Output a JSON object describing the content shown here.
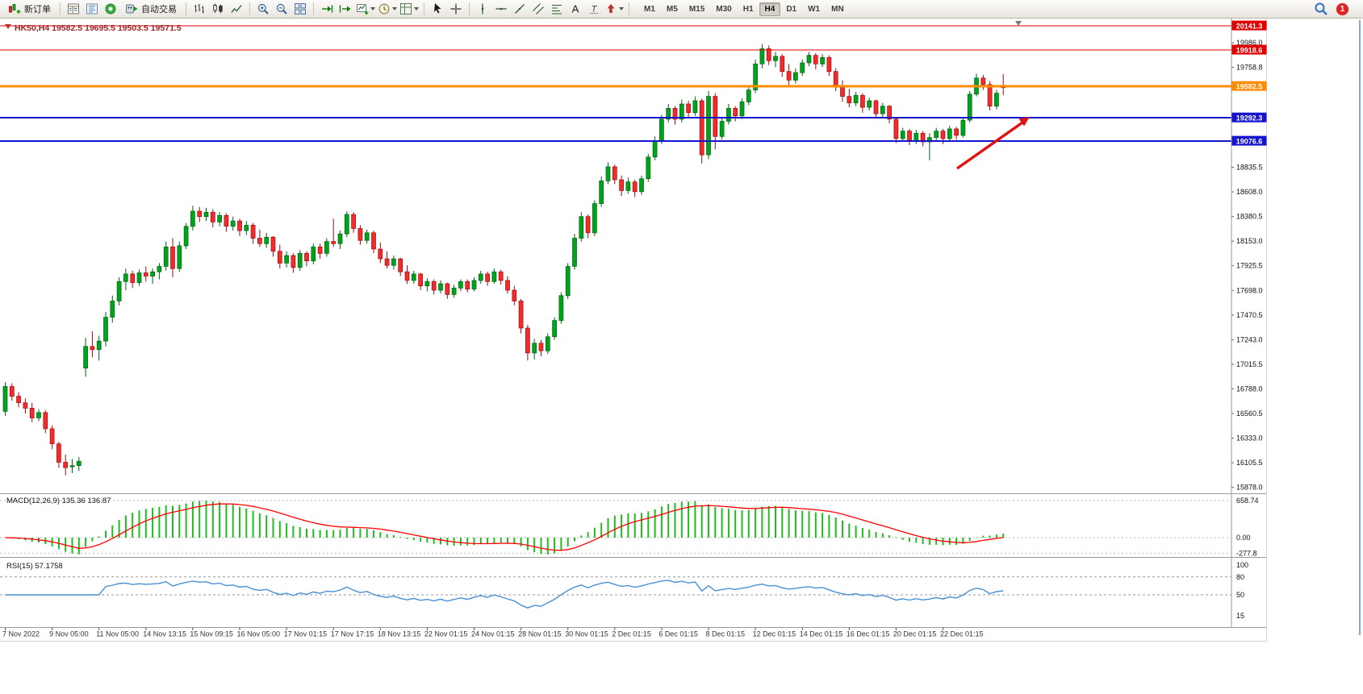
{
  "window": {
    "notification_count": "1"
  },
  "toolbar": {
    "new_order_label": "新订单",
    "auto_trading_label": "自动交易",
    "timeframes": [
      "M1",
      "M5",
      "M15",
      "M30",
      "H1",
      "H4",
      "D1",
      "W1",
      "MN"
    ],
    "active_timeframe": "H4"
  },
  "chart_data": {
    "type": "candlestick",
    "symbol": "HK50",
    "timeframe": "H4",
    "title": "HK50,H4 19582.5 19695.5 19503.5 19571.5",
    "ohlc": {
      "open": 19582.5,
      "high": 19695.5,
      "low": 19503.5,
      "close": 19571.5
    },
    "price_axis_ticks": [
      "19986.0",
      "19758.8",
      "18835.5",
      "18608.0",
      "18380.5",
      "18153.0",
      "17925.5",
      "17698.0",
      "17470.5",
      "17243.0",
      "17015.5",
      "16788.0",
      "16560.5",
      "16333.0",
      "16105.5",
      "15878.0"
    ],
    "level_lines": [
      {
        "price": 20141.3,
        "label": "20141.3",
        "color": "#e00000",
        "width": 1
      },
      {
        "price": 19918.6,
        "label": "19918.6",
        "color": "#e00000",
        "width": 1
      },
      {
        "price": 19582.5,
        "label": "19582.5",
        "color": "#ff8c00",
        "width": 3
      },
      {
        "price": 19292.3,
        "label": "19292.3",
        "color": "#1414cc",
        "width": 2
      },
      {
        "price": 19076.6,
        "label": "19076.6",
        "color": "#1414cc",
        "width": 2
      }
    ],
    "time_labels": [
      "7 Nov 2022",
      "9 Nov 05:00",
      "11 Nov 05:00",
      "14 Nov 13:15",
      "15 Nov 09:15",
      "16 Nov 05:00",
      "17 Nov 01:15",
      "17 Nov 17:15",
      "18 Nov 13:15",
      "22 Nov 01:15",
      "24 Nov 01:15",
      "28 Nov 01:15",
      "30 Nov 01:15",
      "2 Dec 01:15",
      "6 Dec 01:15",
      "8 Dec 01:15",
      "12 Dec 01:15",
      "14 Dec 01:15",
      "16 Dec 01:15",
      "20 Dec 01:15",
      "22 Dec 01:15"
    ],
    "candles": [
      [
        16580,
        16850,
        16540,
        16810
      ],
      [
        16810,
        16840,
        16680,
        16720
      ],
      [
        16720,
        16760,
        16620,
        16660
      ],
      [
        16660,
        16700,
        16560,
        16610
      ],
      [
        16610,
        16660,
        16480,
        16520
      ],
      [
        16520,
        16600,
        16490,
        16570
      ],
      [
        16570,
        16590,
        16380,
        16420
      ],
      [
        16420,
        16450,
        16230,
        16280
      ],
      [
        16280,
        16300,
        16060,
        16110
      ],
      [
        16110,
        16180,
        15990,
        16060
      ],
      [
        16070,
        16140,
        16010,
        16080
      ],
      [
        16080,
        16160,
        16030,
        16120
      ],
      [
        16980,
        17260,
        16900,
        17180
      ],
      [
        17180,
        17320,
        17080,
        17150
      ],
      [
        17150,
        17280,
        17050,
        17230
      ],
      [
        17230,
        17500,
        17180,
        17450
      ],
      [
        17450,
        17650,
        17400,
        17600
      ],
      [
        17600,
        17820,
        17560,
        17780
      ],
      [
        17780,
        17900,
        17700,
        17850
      ],
      [
        17850,
        17880,
        17720,
        17770
      ],
      [
        17770,
        17890,
        17740,
        17860
      ],
      [
        17860,
        17920,
        17780,
        17830
      ],
      [
        17830,
        17900,
        17760,
        17870
      ],
      [
        17870,
        17950,
        17800,
        17920
      ],
      [
        17920,
        18150,
        17880,
        18100
      ],
      [
        18100,
        18180,
        17820,
        17900
      ],
      [
        17900,
        18150,
        17870,
        18110
      ],
      [
        18110,
        18320,
        18080,
        18290
      ],
      [
        18290,
        18480,
        18250,
        18430
      ],
      [
        18430,
        18470,
        18330,
        18380
      ],
      [
        18380,
        18460,
        18340,
        18420
      ],
      [
        18420,
        18450,
        18280,
        18330
      ],
      [
        18330,
        18420,
        18290,
        18390
      ],
      [
        18390,
        18410,
        18240,
        18290
      ],
      [
        18290,
        18380,
        18250,
        18340
      ],
      [
        18340,
        18360,
        18200,
        18250
      ],
      [
        18250,
        18340,
        18210,
        18300
      ],
      [
        18300,
        18320,
        18130,
        18180
      ],
      [
        18180,
        18260,
        18100,
        18130
      ],
      [
        18130,
        18230,
        18090,
        18190
      ],
      [
        18190,
        18200,
        18010,
        18060
      ],
      [
        18060,
        18120,
        17900,
        17950
      ],
      [
        17950,
        18060,
        17910,
        18020
      ],
      [
        18020,
        18040,
        17860,
        17910
      ],
      [
        17910,
        18070,
        17880,
        18040
      ],
      [
        18040,
        18060,
        17920,
        17970
      ],
      [
        17970,
        18130,
        17940,
        18100
      ],
      [
        18100,
        18130,
        17990,
        18040
      ],
      [
        18040,
        18180,
        18010,
        18150
      ],
      [
        18150,
        18360,
        18100,
        18130
      ],
      [
        18130,
        18250,
        18080,
        18220
      ],
      [
        18220,
        18430,
        18190,
        18400
      ],
      [
        18400,
        18420,
        18230,
        18270
      ],
      [
        18270,
        18300,
        18120,
        18160
      ],
      [
        18160,
        18260,
        18130,
        18230
      ],
      [
        18230,
        18250,
        18040,
        18080
      ],
      [
        18080,
        18140,
        17950,
        17990
      ],
      [
        17990,
        18060,
        17900,
        17930
      ],
      [
        17930,
        18020,
        17890,
        17990
      ],
      [
        17990,
        18000,
        17830,
        17870
      ],
      [
        17870,
        17930,
        17760,
        17790
      ],
      [
        17790,
        17880,
        17760,
        17850
      ],
      [
        17850,
        17860,
        17700,
        17740
      ],
      [
        17740,
        17810,
        17690,
        17780
      ],
      [
        17780,
        17800,
        17660,
        17700
      ],
      [
        17700,
        17790,
        17670,
        17760
      ],
      [
        17760,
        17770,
        17620,
        17660
      ],
      [
        17660,
        17750,
        17630,
        17720
      ],
      [
        17720,
        17800,
        17690,
        17780
      ],
      [
        17780,
        17800,
        17680,
        17710
      ],
      [
        17710,
        17820,
        17690,
        17790
      ],
      [
        17790,
        17880,
        17760,
        17850
      ],
      [
        17850,
        17870,
        17740,
        17780
      ],
      [
        17780,
        17900,
        17760,
        17870
      ],
      [
        17870,
        17890,
        17750,
        17790
      ],
      [
        17790,
        17830,
        17670,
        17700
      ],
      [
        17700,
        17740,
        17560,
        17600
      ],
      [
        17600,
        17620,
        17300,
        17350
      ],
      [
        17350,
        17380,
        17050,
        17120
      ],
      [
        17120,
        17250,
        17060,
        17210
      ],
      [
        17210,
        17240,
        17090,
        17140
      ],
      [
        17140,
        17300,
        17110,
        17270
      ],
      [
        17270,
        17450,
        17240,
        17420
      ],
      [
        17420,
        17680,
        17390,
        17650
      ],
      [
        17650,
        17950,
        17620,
        17920
      ],
      [
        17920,
        18220,
        17890,
        18180
      ],
      [
        18180,
        18420,
        18150,
        18380
      ],
      [
        18380,
        18400,
        18180,
        18230
      ],
      [
        18230,
        18530,
        18200,
        18500
      ],
      [
        18500,
        18750,
        18470,
        18710
      ],
      [
        18710,
        18880,
        18680,
        18840
      ],
      [
        18840,
        18860,
        18680,
        18720
      ],
      [
        18720,
        18760,
        18570,
        18620
      ],
      [
        18620,
        18740,
        18590,
        18700
      ],
      [
        18700,
        18720,
        18560,
        18610
      ],
      [
        18610,
        18760,
        18580,
        18730
      ],
      [
        18730,
        18960,
        18700,
        18930
      ],
      [
        18930,
        19120,
        18900,
        19080
      ],
      [
        19080,
        19320,
        19050,
        19280
      ],
      [
        19280,
        19420,
        19250,
        19380
      ],
      [
        19380,
        19400,
        19230,
        19280
      ],
      [
        19280,
        19460,
        19250,
        19420
      ],
      [
        19420,
        19450,
        19290,
        19340
      ],
      [
        19340,
        19490,
        19310,
        19450
      ],
      [
        19450,
        19470,
        18870,
        18950
      ],
      [
        18950,
        19540,
        18910,
        19490
      ],
      [
        19490,
        19520,
        19000,
        19120
      ],
      [
        19120,
        19300,
        19090,
        19260
      ],
      [
        19260,
        19420,
        19230,
        19380
      ],
      [
        19380,
        19400,
        19260,
        19310
      ],
      [
        19310,
        19470,
        19280,
        19440
      ],
      [
        19440,
        19580,
        19410,
        19550
      ],
      [
        19550,
        19830,
        19520,
        19790
      ],
      [
        19790,
        19975,
        19750,
        19930
      ],
      [
        19930,
        19960,
        19780,
        19820
      ],
      [
        19820,
        19900,
        19760,
        19860
      ],
      [
        19860,
        19880,
        19670,
        19720
      ],
      [
        19720,
        19790,
        19590,
        19640
      ],
      [
        19640,
        19750,
        19610,
        19710
      ],
      [
        19710,
        19830,
        19680,
        19800
      ],
      [
        19800,
        19900,
        19770,
        19870
      ],
      [
        19870,
        19890,
        19740,
        19790
      ],
      [
        19790,
        19880,
        19760,
        19850
      ],
      [
        19850,
        19870,
        19680,
        19720
      ],
      [
        19720,
        19750,
        19540,
        19590
      ],
      [
        19590,
        19640,
        19440,
        19490
      ],
      [
        19490,
        19560,
        19390,
        19430
      ],
      [
        19430,
        19530,
        19400,
        19500
      ],
      [
        19500,
        19520,
        19340,
        19390
      ],
      [
        19390,
        19480,
        19360,
        19450
      ],
      [
        19450,
        19460,
        19290,
        19330
      ],
      [
        19330,
        19430,
        19300,
        19400
      ],
      [
        19400,
        19410,
        19240,
        19280
      ],
      [
        19280,
        19300,
        19060,
        19100
      ],
      [
        19100,
        19200,
        19070,
        19170
      ],
      [
        19170,
        19190,
        19040,
        19080
      ],
      [
        19080,
        19180,
        19050,
        19150
      ],
      [
        19150,
        19170,
        19030,
        19070
      ],
      [
        19070,
        19150,
        18900,
        19110
      ],
      [
        19110,
        19200,
        19080,
        19170
      ],
      [
        19170,
        19190,
        19050,
        19100
      ],
      [
        19100,
        19220,
        19070,
        19190
      ],
      [
        19190,
        19210,
        19090,
        19130
      ],
      [
        19130,
        19300,
        19110,
        19270
      ],
      [
        19270,
        19540,
        19250,
        19510
      ],
      [
        19510,
        19700,
        19490,
        19660
      ],
      [
        19660,
        19690,
        19550,
        19600
      ],
      [
        19600,
        19630,
        19360,
        19400
      ],
      [
        19400,
        19550,
        19370,
        19520
      ],
      [
        19582.5,
        19695.5,
        19503.5,
        19571.5
      ]
    ],
    "indicators": {
      "macd": {
        "label": "MACD(12,26,9) 135.36 136.87",
        "fast": 12,
        "slow": 26,
        "signal": 9,
        "value": 135.36,
        "signal_value": 136.87,
        "axis_ticks": [
          "658.74",
          "0.00",
          "-277.8"
        ]
      },
      "rsi": {
        "label": "RSI(15) 57.1758",
        "period": 15,
        "value": 57.1758,
        "axis_ticks": [
          "100",
          "80",
          "50",
          "15"
        ],
        "levels": [
          80,
          50
        ]
      }
    },
    "annotation": {
      "type": "arrow",
      "color": "#e01212",
      "direction": "up-right"
    },
    "colors": {
      "bull": "#00a31c",
      "bear": "#f22c2c",
      "bull_border": "#006410",
      "bear_border": "#9c0c0c",
      "macd_hist": "#22bb22",
      "macd_signal": "#ff0000",
      "rsi_line": "#4a8fd4"
    }
  }
}
